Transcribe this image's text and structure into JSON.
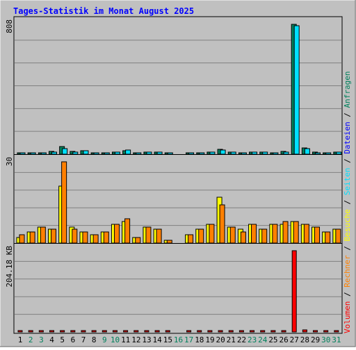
{
  "title": "Tages-Statistik im Monat August 2025",
  "colors": {
    "background": "#c0c0c0",
    "title": "#0000ff",
    "anfragen": "#00805c",
    "dateien": "#00c0ff",
    "seiten": "#00e0ff",
    "besuche": "#ffff00",
    "rechner": "#ff8000",
    "volumen": "#ff0000",
    "weekend": "#00805c",
    "weekday": "#000000"
  },
  "right_legend": {
    "bottom": [
      "Volumen",
      "Rechner",
      "Besuche",
      "Seiten",
      "Dateien",
      "Anfragen"
    ],
    "separator": "/"
  },
  "chart_data": [
    {
      "type": "bar",
      "panel": "top",
      "ylabel": "808",
      "ylim": [
        0,
        808
      ],
      "categories": [
        "1",
        "2",
        "3",
        "4",
        "5",
        "6",
        "7",
        "8",
        "9",
        "10",
        "11",
        "12",
        "13",
        "14",
        "15",
        "16",
        "17",
        "18",
        "19",
        "20",
        "21",
        "22",
        "23",
        "24",
        "25",
        "26",
        "27",
        "28",
        "29",
        "30",
        "31"
      ],
      "series": [
        {
          "name": "Anfragen",
          "values": [
            5,
            6,
            10,
            16,
            46,
            16,
            22,
            5,
            8,
            13,
            23,
            6,
            12,
            12,
            3,
            0,
            4,
            10,
            14,
            30,
            14,
            10,
            12,
            14,
            10,
            16,
            808,
            38,
            12,
            8,
            15
          ]
        },
        {
          "name": "Dateien",
          "values": [
            4,
            5,
            9,
            15,
            34,
            15,
            20,
            4,
            7,
            12,
            28,
            5,
            11,
            11,
            2,
            0,
            3,
            9,
            13,
            28,
            12,
            9,
            11,
            13,
            9,
            14,
            798,
            36,
            10,
            7,
            14
          ]
        }
      ]
    },
    {
      "type": "bar",
      "panel": "middle",
      "ylabel": "30",
      "ylim": [
        0,
        30
      ],
      "categories": [
        "1",
        "2",
        "3",
        "4",
        "5",
        "6",
        "7",
        "8",
        "9",
        "10",
        "11",
        "12",
        "13",
        "14",
        "15",
        "16",
        "17",
        "18",
        "19",
        "20",
        "21",
        "22",
        "23",
        "24",
        "25",
        "26",
        "27",
        "28",
        "29",
        "30",
        "31"
      ],
      "series": [
        {
          "name": "Seiten",
          "values": [
            2,
            4,
            6,
            5,
            21,
            6,
            4,
            3,
            4,
            7,
            8,
            2,
            6,
            5,
            1,
            0,
            3,
            5,
            7,
            17,
            6,
            5,
            7,
            5,
            7,
            7,
            8,
            7,
            6,
            4,
            5
          ]
        },
        {
          "name": "Besuche",
          "values": [
            2,
            4,
            6,
            5,
            21,
            6,
            4,
            3,
            4,
            7,
            8,
            2,
            6,
            5,
            1,
            0,
            3,
            5,
            7,
            17,
            6,
            5,
            7,
            5,
            7,
            7,
            8,
            7,
            6,
            4,
            5
          ]
        },
        {
          "name": "Rechner",
          "values": [
            3,
            4,
            6,
            5,
            30,
            5,
            4,
            3,
            4,
            7,
            9,
            2,
            6,
            5,
            1,
            0,
            3,
            5,
            7,
            14,
            6,
            4,
            7,
            5,
            7,
            8,
            8,
            7,
            6,
            4,
            5
          ]
        }
      ]
    },
    {
      "type": "bar",
      "panel": "bottom",
      "ylabel": "204.18 KB",
      "ylim": [
        0,
        204.18
      ],
      "categories": [
        "1",
        "2",
        "3",
        "4",
        "5",
        "6",
        "7",
        "8",
        "9",
        "10",
        "11",
        "12",
        "13",
        "14",
        "15",
        "16",
        "17",
        "18",
        "19",
        "20",
        "21",
        "22",
        "23",
        "24",
        "25",
        "26",
        "27",
        "28",
        "29",
        "30",
        "31"
      ],
      "series": [
        {
          "name": "Volumen",
          "values": [
            2,
            2,
            2,
            3,
            4,
            3,
            3,
            2,
            2,
            3,
            4,
            2,
            2,
            2,
            1,
            0,
            1,
            2,
            2,
            4,
            2,
            2,
            2,
            2,
            2,
            2,
            204.18,
            5,
            2,
            2,
            3
          ]
        }
      ]
    }
  ]
}
